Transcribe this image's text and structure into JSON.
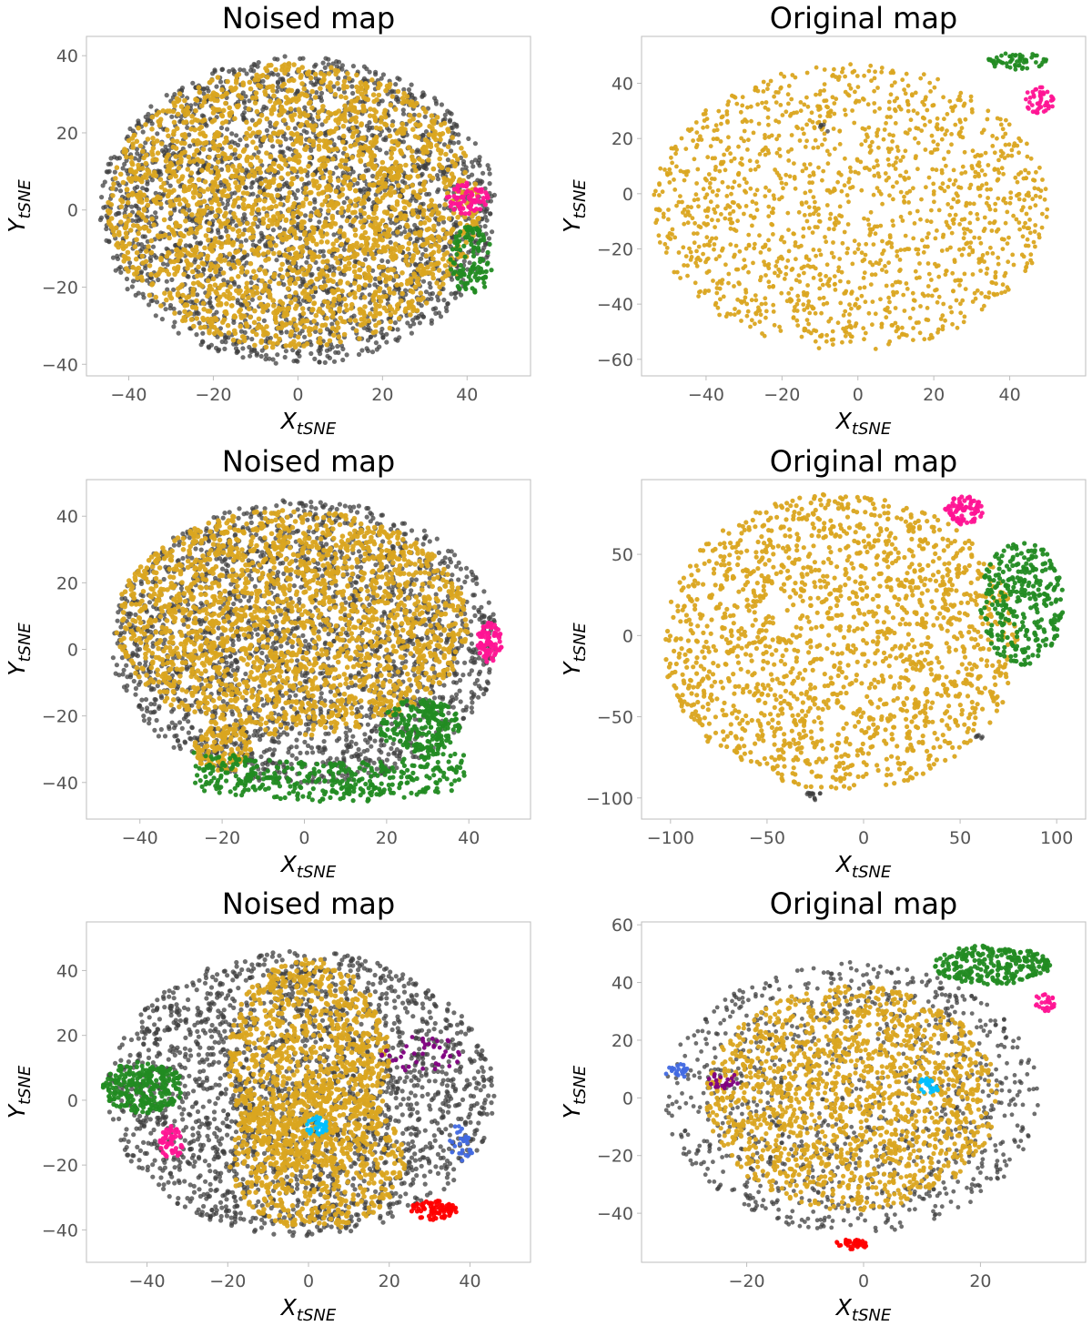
{
  "colors": {
    "background": "#3f3f3f",
    "main": "#daa520",
    "green": "#228b22",
    "pink": "#ff1493",
    "purple": "#800080",
    "cyan": "#00bfff",
    "blue": "#4169e1",
    "red": "#ff0000"
  },
  "chart_data": [
    {
      "type": "scatter",
      "title": "Noised map",
      "xlabel": "X",
      "xlabel_sub": "tSNE",
      "ylabel": "Y",
      "ylabel_sub": "tSNE",
      "xlim": [
        -50,
        55
      ],
      "ylim": [
        -43,
        45
      ],
      "xticks": [
        -40,
        -20,
        0,
        20,
        40
      ],
      "xtick_labels": [
        "−40",
        "−20",
        "0",
        "20",
        "40"
      ],
      "yticks": [
        -40,
        -20,
        0,
        20,
        40
      ],
      "ytick_labels": [
        "−40",
        "−20",
        "0",
        "20",
        "40"
      ],
      "grid": false,
      "series": [
        {
          "color_key": "background",
          "shape": "ellipse",
          "center": [
            0,
            0
          ],
          "radii": [
            47,
            40
          ],
          "count": 2400,
          "size": 2.6
        },
        {
          "color_key": "main",
          "shape": "ellipse",
          "center": [
            -1,
            1
          ],
          "radii": [
            44,
            37
          ],
          "count": 2300,
          "size": 2.8
        },
        {
          "color_key": "pink",
          "shape": "ellipse",
          "center": [
            40,
            3
          ],
          "radii": [
            5,
            4
          ],
          "count": 70,
          "size": 2.6
        },
        {
          "color_key": "green",
          "shape": "ellipse",
          "center": [
            41,
            -13
          ],
          "radii": [
            5,
            9
          ],
          "count": 110,
          "size": 2.6
        }
      ]
    },
    {
      "type": "scatter",
      "title": "Original map",
      "xlabel": "X",
      "xlabel_sub": "tSNE",
      "ylabel": "Y",
      "ylabel_sub": "tSNE",
      "xlim": [
        -57,
        60
      ],
      "ylim": [
        -66,
        57
      ],
      "xticks": [
        -40,
        -20,
        0,
        20,
        40
      ],
      "xtick_labels": [
        "−40",
        "−20",
        "0",
        "20",
        "40"
      ],
      "yticks": [
        -60,
        -40,
        -20,
        0,
        20,
        40
      ],
      "ytick_labels": [
        "−60",
        "−40",
        "−20",
        "0",
        "20",
        "40"
      ],
      "grid": false,
      "series": [
        {
          "color_key": "main",
          "shape": "ellipse",
          "center": [
            -2,
            -5
          ],
          "radii": [
            52,
            52
          ],
          "count": 1500,
          "size": 2.4
        },
        {
          "color_key": "background",
          "shape": "ellipse",
          "center": [
            -8,
            24
          ],
          "radii": [
            2,
            3
          ],
          "count": 5,
          "size": 2.4
        },
        {
          "color_key": "green",
          "shape": "ellipse",
          "center": [
            42,
            48
          ],
          "radii": [
            8,
            3
          ],
          "count": 60,
          "size": 2.4
        },
        {
          "color_key": "pink",
          "shape": "ellipse",
          "center": [
            48,
            34
          ],
          "radii": [
            4,
            5
          ],
          "count": 50,
          "size": 2.4
        }
      ]
    },
    {
      "type": "scatter",
      "title": "Noised map",
      "xlabel": "X",
      "xlabel_sub": "tSNE",
      "ylabel": "Y",
      "ylabel_sub": "tSNE",
      "xlim": [
        -53,
        55
      ],
      "ylim": [
        -51,
        51
      ],
      "xticks": [
        -40,
        -20,
        0,
        20,
        40
      ],
      "xtick_labels": [
        "−40",
        "−20",
        "0",
        "20",
        "40"
      ],
      "yticks": [
        -40,
        -20,
        0,
        20,
        40
      ],
      "ytick_labels": [
        "−40",
        "−20",
        "0",
        "20",
        "40"
      ],
      "grid": false,
      "series": [
        {
          "color_key": "background",
          "shape": "ellipse",
          "center": [
            0,
            2
          ],
          "radii": [
            47,
            43
          ],
          "count": 2200,
          "size": 2.6
        },
        {
          "color_key": "main",
          "shape": "ellipse",
          "center": [
            -3,
            8
          ],
          "radii": [
            43,
            34
          ],
          "count": 2000,
          "size": 2.8
        },
        {
          "color_key": "main",
          "shape": "ellipse",
          "center": [
            -20,
            -30
          ],
          "radii": [
            7,
            7
          ],
          "count": 120,
          "size": 2.8
        },
        {
          "color_key": "green",
          "shape": "band",
          "x_range": [
            -27,
            39
          ],
          "y_center": -36,
          "thickness": 6,
          "count": 400,
          "size": 2.6
        },
        {
          "color_key": "green",
          "shape": "ellipse",
          "center": [
            28,
            -23
          ],
          "radii": [
            10,
            8
          ],
          "count": 220,
          "size": 2.6
        },
        {
          "color_key": "pink",
          "shape": "ellipse",
          "center": [
            45,
            2
          ],
          "radii": [
            3,
            6
          ],
          "count": 80,
          "size": 2.6
        }
      ]
    },
    {
      "type": "scatter",
      "title": "Original map",
      "xlabel": "X",
      "xlabel_sub": "tSNE",
      "ylabel": "Y",
      "ylabel_sub": "tSNE",
      "xlim": [
        -115,
        115
      ],
      "ylim": [
        -113,
        96
      ],
      "xticks": [
        -100,
        -50,
        0,
        50,
        100
      ],
      "xtick_labels": [
        "−100",
        "−50",
        "0",
        "50",
        "100"
      ],
      "yticks": [
        -100,
        -50,
        0,
        50
      ],
      "ytick_labels": [
        "−100",
        "−50",
        "0",
        "50"
      ],
      "grid": false,
      "series": [
        {
          "color_key": "main",
          "shape": "ellipse",
          "center": [
            -12,
            -4
          ],
          "radii": [
            92,
            92
          ],
          "count": 1700,
          "size": 2.6
        },
        {
          "color_key": "pink",
          "shape": "ellipse",
          "center": [
            52,
            77
          ],
          "radii": [
            10,
            9
          ],
          "count": 80,
          "size": 2.6
        },
        {
          "color_key": "green",
          "shape": "ellipse",
          "center": [
            82,
            20
          ],
          "radii": [
            22,
            38
          ],
          "count": 300,
          "size": 2.6
        },
        {
          "color_key": "background",
          "shape": "ellipse",
          "center": [
            -26,
            -98
          ],
          "radii": [
            4,
            4
          ],
          "count": 15,
          "size": 2.4
        },
        {
          "color_key": "background",
          "shape": "ellipse",
          "center": [
            60,
            -62
          ],
          "radii": [
            2,
            2
          ],
          "count": 6,
          "size": 2.4
        }
      ]
    },
    {
      "type": "scatter",
      "title": "Noised map",
      "xlabel": "X",
      "xlabel_sub": "tSNE",
      "ylabel": "Y",
      "ylabel_sub": "tSNE",
      "xlim": [
        -55,
        55
      ],
      "ylim": [
        -50,
        55
      ],
      "xticks": [
        -40,
        -20,
        0,
        20,
        40
      ],
      "xtick_labels": [
        "−40",
        "−20",
        "0",
        "20",
        "40"
      ],
      "yticks": [
        -40,
        -20,
        0,
        20,
        40
      ],
      "ytick_labels": [
        "−40",
        "−20",
        "0",
        "20",
        "40"
      ],
      "grid": false,
      "series": [
        {
          "color_key": "background",
          "shape": "ellipse",
          "center": [
            -2,
            2
          ],
          "radii": [
            48,
            44
          ],
          "count": 2200,
          "size": 2.6
        },
        {
          "color_key": "main",
          "shape": "ellipse",
          "center": [
            0,
            12
          ],
          "radii": [
            20,
            32
          ],
          "count": 900,
          "size": 2.8
        },
        {
          "color_key": "main",
          "shape": "ellipse",
          "center": [
            2,
            -18
          ],
          "radii": [
            22,
            22
          ],
          "count": 600,
          "size": 2.8
        },
        {
          "color_key": "green",
          "shape": "ellipse",
          "center": [
            -41,
            4
          ],
          "radii": [
            10,
            8
          ],
          "count": 260,
          "size": 2.6
        },
        {
          "color_key": "pink",
          "shape": "ellipse",
          "center": [
            -34,
            -13
          ],
          "radii": [
            3,
            5
          ],
          "count": 45,
          "size": 2.6
        },
        {
          "color_key": "purple",
          "shape": "ellipse",
          "center": [
            28,
            14
          ],
          "radii": [
            10,
            6
          ],
          "count": 40,
          "size": 2.4
        },
        {
          "color_key": "cyan",
          "shape": "ellipse",
          "center": [
            2,
            -8
          ],
          "radii": [
            3,
            3
          ],
          "count": 35,
          "size": 2.4
        },
        {
          "color_key": "blue",
          "shape": "ellipse",
          "center": [
            38,
            -13
          ],
          "radii": [
            3,
            6
          ],
          "count": 30,
          "size": 2.4
        },
        {
          "color_key": "red",
          "shape": "ellipse",
          "center": [
            31,
            -34
          ],
          "radii": [
            6,
            3
          ],
          "count": 70,
          "size": 2.6
        }
      ]
    },
    {
      "type": "scatter",
      "title": "Original map",
      "xlabel": "X",
      "xlabel_sub": "tSNE",
      "ylabel": "Y",
      "ylabel_sub": "tSNE",
      "xlim": [
        -38,
        38
      ],
      "ylim": [
        -57,
        61
      ],
      "xticks": [
        -20,
        0,
        20
      ],
      "xtick_labels": [
        "−20",
        "0",
        "20"
      ],
      "yticks": [
        -40,
        -20,
        0,
        20,
        40,
        60
      ],
      "ytick_labels": [
        "−40",
        "−20",
        "0",
        "20",
        "40",
        "60"
      ],
      "grid": false,
      "series": [
        {
          "color_key": "background",
          "shape": "ellipse",
          "center": [
            -2,
            0
          ],
          "radii": [
            32,
            47
          ],
          "count": 1100,
          "size": 2.4
        },
        {
          "color_key": "main",
          "shape": "ellipse",
          "center": [
            -2,
            0
          ],
          "radii": [
            25,
            39
          ],
          "count": 1500,
          "size": 2.6
        },
        {
          "color_key": "green",
          "shape": "ellipse",
          "center": [
            22,
            46
          ],
          "radii": [
            10,
            7
          ],
          "count": 250,
          "size": 2.6
        },
        {
          "color_key": "pink",
          "shape": "ellipse",
          "center": [
            31,
            33
          ],
          "radii": [
            2,
            3
          ],
          "count": 30,
          "size": 2.4
        },
        {
          "color_key": "blue",
          "shape": "ellipse",
          "center": [
            -32,
            9
          ],
          "radii": [
            2,
            3
          ],
          "count": 22,
          "size": 2.4
        },
        {
          "color_key": "purple",
          "shape": "ellipse",
          "center": [
            -24,
            6
          ],
          "radii": [
            3,
            3
          ],
          "count": 22,
          "size": 2.4
        },
        {
          "color_key": "cyan",
          "shape": "ellipse",
          "center": [
            11,
            4
          ],
          "radii": [
            2,
            3
          ],
          "count": 25,
          "size": 2.4
        },
        {
          "color_key": "red",
          "shape": "ellipse",
          "center": [
            -2,
            -51
          ],
          "radii": [
            3,
            2
          ],
          "count": 40,
          "size": 2.4
        }
      ]
    }
  ]
}
